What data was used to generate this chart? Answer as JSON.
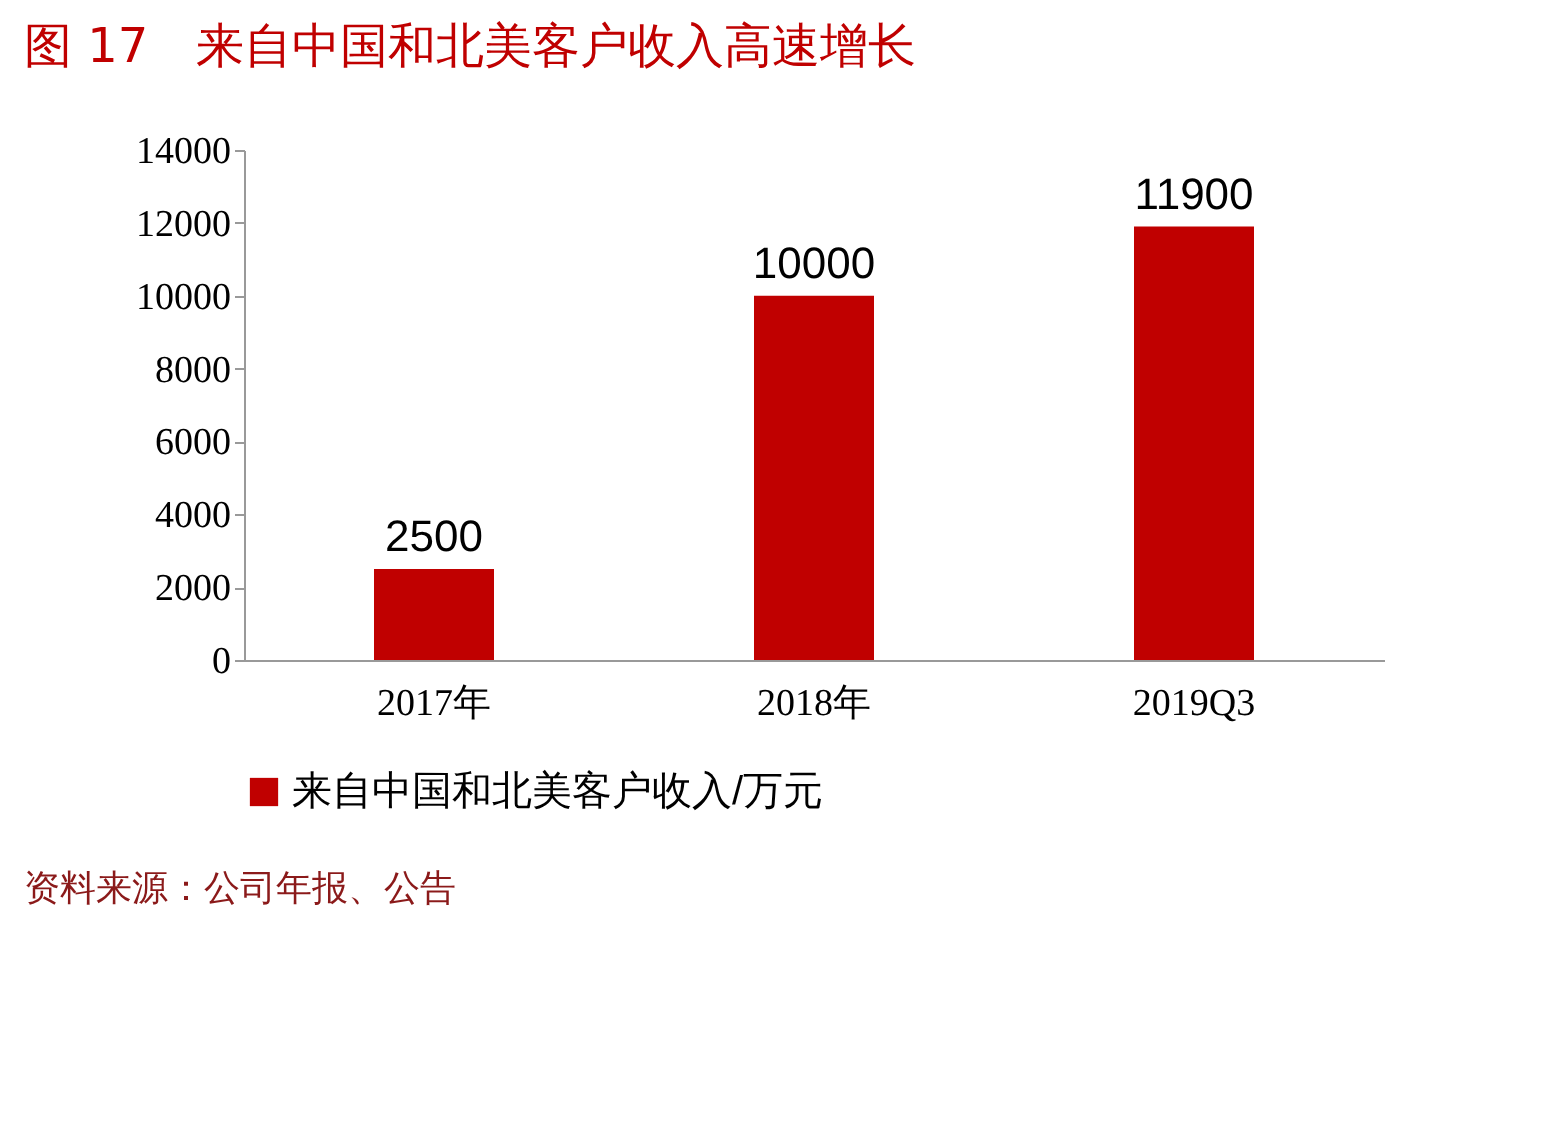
{
  "chart_data": {
    "type": "bar",
    "title": "图 17　来自中国和北美客户收入高速增长",
    "categories": [
      "2017年",
      "2018年",
      "2019Q3"
    ],
    "series": [
      {
        "name": "来自中国和北美客户收入/万元",
        "color": "#c00000",
        "values": [
          2500,
          10000,
          11900
        ]
      }
    ],
    "ylim": [
      0,
      14000
    ],
    "yticks": [
      0,
      2000,
      4000,
      6000,
      8000,
      10000,
      12000,
      14000
    ],
    "grid": false,
    "legend": "bottom",
    "data_labels": true,
    "annotations": [
      "资料来源：公司年报、公告"
    ]
  }
}
